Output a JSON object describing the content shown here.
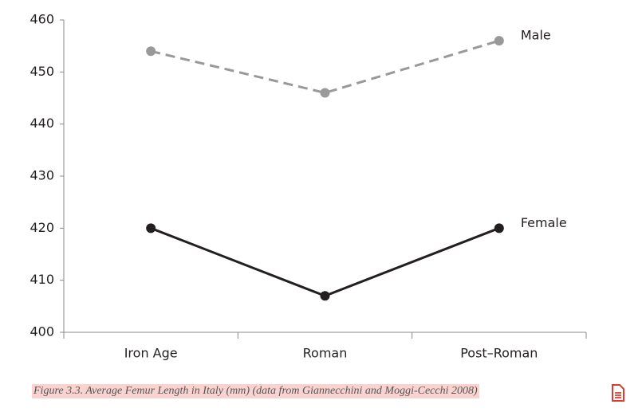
{
  "chart_data": {
    "type": "line",
    "categories": [
      "Iron Age",
      "Roman",
      "Post–Roman"
    ],
    "series": [
      {
        "name": "Male",
        "color": "#999999",
        "dashed": true,
        "values": [
          454,
          446,
          456
        ]
      },
      {
        "name": "Female",
        "color": "#231f20",
        "dashed": false,
        "values": [
          420,
          407,
          420
        ]
      }
    ],
    "ylim": [
      400,
      460
    ],
    "yticks": [
      400,
      410,
      420,
      430,
      440,
      450,
      460
    ],
    "caption": "Figure 3.3. Average Femur Length in Italy (mm) (data from Giannecchini and Moggi-Cecchi 2008)"
  }
}
